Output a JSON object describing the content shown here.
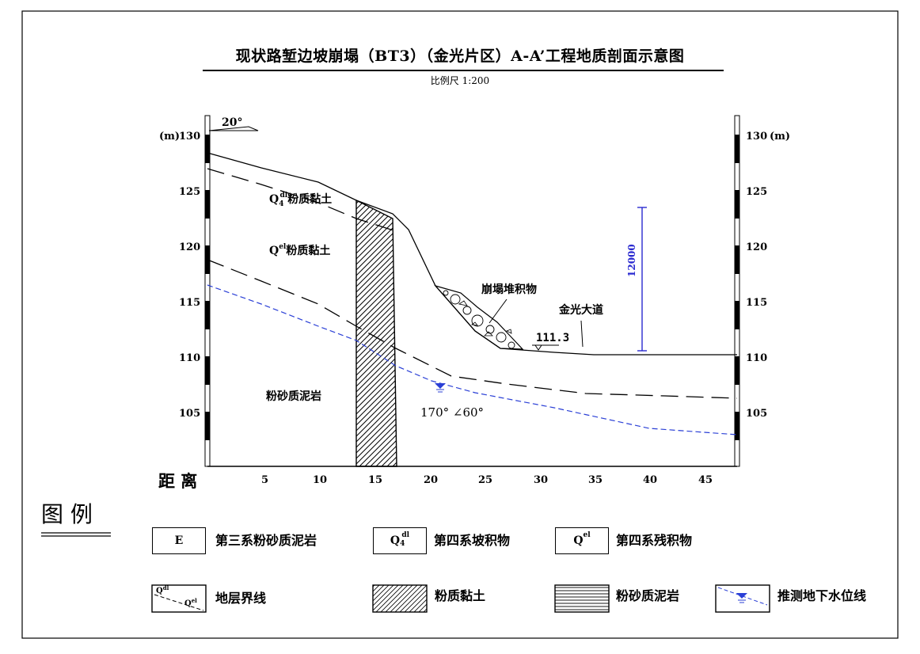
{
  "title": "现状路堑边坡崩塌（BT3）（金光片区）A-A’工程地质剖面示意图",
  "scale": "比例尺   1:200",
  "unit_left": "(m)",
  "unit_right": "(m)",
  "elevation_ticks": [
    "130",
    "125",
    "120",
    "115",
    "110",
    "105"
  ],
  "distance_label": "距 离",
  "distance_ticks": [
    "5",
    "10",
    "15",
    "20",
    "25",
    "30",
    "35",
    "40",
    "45"
  ],
  "slope_dir": "20°",
  "labels": {
    "qdl_q": "Q",
    "qdl_sub": "4",
    "qdl_sup": "dl",
    "qdl_text": "粉质黏土",
    "qel_q": "Q",
    "qel_sup": "el",
    "qel_text": "粉质黏土",
    "mudstone": "粉砂质泥岩",
    "collapse": "崩塌堆积物",
    "road": "金光大道",
    "road_elev": "111.3",
    "dimension": "12000",
    "attitude": "170°  ∠60°"
  },
  "legend": {
    "title": "图  例",
    "e_symbol": "E",
    "e_text": "第三系粉砂质泥岩",
    "q4_q": "Q",
    "q4_sub": "4",
    "q4_sup": "dl",
    "q4_text": "第四系坡积物",
    "qel_q": "Q",
    "qel_sup": "el",
    "qel_text": "第四系残积物",
    "boundary_top": "Q",
    "boundary_top_sup": "dl",
    "boundary_top_sub": "4",
    "boundary_bottom": "Q",
    "boundary_bottom_sup": "el",
    "boundary_text": "地层界线",
    "clay_text": "粉质黏土",
    "mud_text": "粉砂质泥岩",
    "water_text": "推测地下水位线"
  },
  "colors": {
    "water_line": "#2a3fd6",
    "dimension_line": "#2a2ad0",
    "frame": "#000000"
  }
}
